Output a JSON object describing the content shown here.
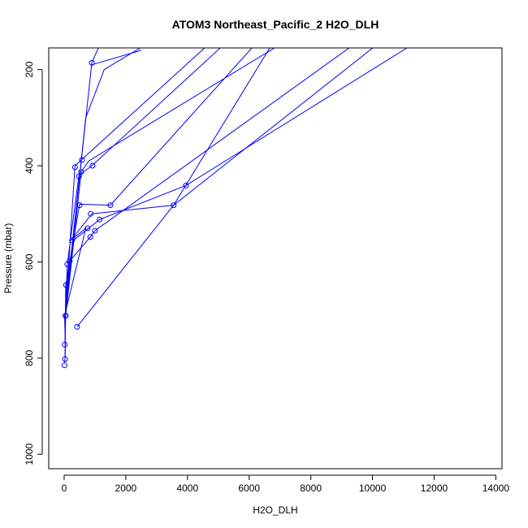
{
  "chart_data": {
    "type": "scatter",
    "title": "ATOM3 Northeast_Pacific_2 H2O_DLH",
    "xlabel": "H2O_DLH",
    "ylabel": "Pressure (mbar)",
    "xlim": [
      -500,
      14200
    ],
    "ylim": [
      1030,
      155
    ],
    "y_reversed": true,
    "x_ticks": [
      0,
      2000,
      4000,
      6000,
      8000,
      10000,
      12000,
      14000
    ],
    "x_tick_labels": [
      "0",
      "2000",
      "4000",
      "6000",
      "8000",
      "10000",
      "12000",
      "14000"
    ],
    "y_ticks": [
      200,
      400,
      600,
      800,
      1000
    ],
    "y_tick_labels": [
      "200",
      "400",
      "600",
      "800",
      "1000"
    ],
    "grid": false,
    "legend": "none",
    "color": "#0000ff",
    "series": [
      {
        "x": [
          10,
          30,
          40,
          15,
          700,
          220,
          900,
          3550,
          7000,
          11500
        ],
        "y": [
          810,
          800,
          770,
          712,
          530,
          555,
          500,
          482,
          120,
          100
        ]
      },
      {
        "x": [
          30,
          40,
          350,
          5500,
          8000
        ],
        "y": [
          800,
          712,
          400,
          100,
          80
        ]
      },
      {
        "x": [
          30,
          50,
          550,
          800,
          9000
        ],
        "y": [
          770,
          712,
          413,
          390,
          70
        ]
      },
      {
        "x": [
          40,
          50,
          500,
          1500,
          7000
        ],
        "y": [
          712,
          648,
          480,
          482,
          90
        ]
      },
      {
        "x": [
          40,
          100,
          480,
          900,
          6000
        ],
        "y": [
          712,
          605,
          420,
          400,
          100
        ]
      },
      {
        "x": [
          40,
          180,
          850,
          1000,
          10000
        ],
        "y": [
          712,
          598,
          548,
          535,
          120
        ]
      },
      {
        "x": [
          30,
          300,
          1150,
          3950,
          13000
        ],
        "y": [
          712,
          555,
          512,
          441,
          80
        ]
      },
      {
        "x": [
          420,
          3550,
          10500
        ],
        "y": [
          735,
          482,
          130
        ]
      },
      {
        "x": [
          40,
          200,
          900,
          1500
        ],
        "y": [
          712,
          600,
          185,
          100
        ]
      },
      {
        "x": [
          30,
          700,
          1300,
          2600
        ],
        "y": [
          712,
          300,
          200,
          150
        ]
      },
      {
        "x": [
          900,
          2500
        ],
        "y": [
          190,
          160
        ]
      }
    ],
    "markers": [
      {
        "x": 10,
        "y": 815
      },
      {
        "x": 30,
        "y": 802
      },
      {
        "x": 20,
        "y": 772
      },
      {
        "x": 420,
        "y": 735
      },
      {
        "x": 40,
        "y": 712
      },
      {
        "x": 50,
        "y": 712
      },
      {
        "x": 60,
        "y": 648
      },
      {
        "x": 100,
        "y": 605
      },
      {
        "x": 180,
        "y": 598
      },
      {
        "x": 260,
        "y": 555
      },
      {
        "x": 850,
        "y": 548
      },
      {
        "x": 1000,
        "y": 535
      },
      {
        "x": 760,
        "y": 530
      },
      {
        "x": 1150,
        "y": 512
      },
      {
        "x": 860,
        "y": 500
      },
      {
        "x": 500,
        "y": 482
      },
      {
        "x": 1500,
        "y": 482
      },
      {
        "x": 3550,
        "y": 482
      },
      {
        "x": 3950,
        "y": 441
      },
      {
        "x": 480,
        "y": 422
      },
      {
        "x": 550,
        "y": 413
      },
      {
        "x": 350,
        "y": 403
      },
      {
        "x": 920,
        "y": 400
      },
      {
        "x": 580,
        "y": 388
      },
      {
        "x": 900,
        "y": 186
      }
    ]
  }
}
